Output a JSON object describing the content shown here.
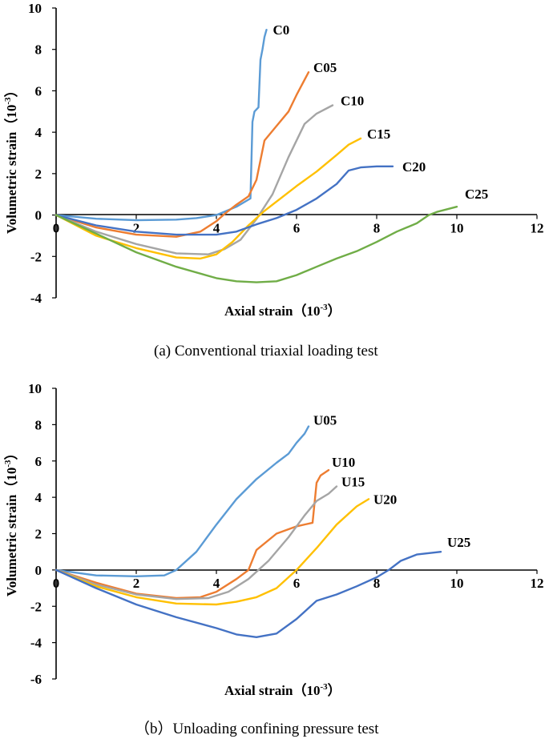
{
  "chart_data": [
    {
      "type": "line",
      "caption": "(a)  Conventional triaxial loading test",
      "xlabel": "Axial strain（10",
      "xlabel_sup": "-3",
      "xlabel_end": "）",
      "ylabel": "Volumetric strain（10",
      "ylabel_sup": "-3",
      "ylabel_end": "）",
      "xlim": [
        0,
        12
      ],
      "ylim": [
        -4,
        10
      ],
      "xticks": [
        "0",
        "2",
        "4",
        "6",
        "8",
        "10",
        "12"
      ],
      "yticks": [
        "-4",
        "-2",
        "0",
        "2",
        "4",
        "6",
        "8",
        "10"
      ],
      "series": [
        {
          "name": "C0",
          "color": "#5B9BD5",
          "x": [
            0,
            1,
            2,
            3,
            3.5,
            4,
            4.5,
            4.85,
            4.9,
            4.95,
            5.05,
            5.1,
            5.15,
            5.2,
            5.25
          ],
          "y": [
            0,
            -0.18,
            -0.25,
            -0.22,
            -0.15,
            0,
            0.4,
            0.8,
            4.5,
            5.0,
            5.2,
            7.5,
            8.0,
            8.6,
            8.95
          ]
        },
        {
          "name": "C05",
          "color": "#ED7D31",
          "x": [
            0,
            1,
            2,
            3,
            3.6,
            4,
            4.2,
            4.5,
            4.8,
            5.0,
            5.2,
            5.5,
            5.8,
            6.0,
            6.3
          ],
          "y": [
            0,
            -0.6,
            -0.95,
            -1.05,
            -0.8,
            -0.3,
            0.05,
            0.5,
            0.9,
            1.7,
            3.6,
            4.3,
            5.0,
            5.8,
            6.9
          ]
        },
        {
          "name": "C10",
          "color": "#A5A5A5",
          "x": [
            0,
            1,
            2,
            3,
            3.8,
            4.2,
            4.6,
            5.0,
            5.4,
            5.8,
            6.2,
            6.5,
            6.9
          ],
          "y": [
            0,
            -0.8,
            -1.4,
            -1.85,
            -1.9,
            -1.65,
            -1.2,
            -0.2,
            1.0,
            2.8,
            4.4,
            4.9,
            5.3
          ]
        },
        {
          "name": "C15",
          "color": "#FFC000",
          "x": [
            0,
            1,
            2,
            3,
            3.6,
            4.0,
            4.4,
            4.8,
            5.2,
            5.6,
            6.0,
            6.5,
            7.0,
            7.3,
            7.6
          ],
          "y": [
            0,
            -1.0,
            -1.6,
            -2.05,
            -2.1,
            -1.9,
            -1.3,
            -0.5,
            0.2,
            0.8,
            1.4,
            2.1,
            2.9,
            3.4,
            3.7
          ]
        },
        {
          "name": "C20",
          "color": "#4472C4",
          "x": [
            0,
            1,
            2,
            3,
            4,
            4.5,
            5.0,
            5.5,
            6.0,
            6.5,
            7.0,
            7.3,
            7.6,
            8.0,
            8.4
          ],
          "y": [
            0,
            -0.5,
            -0.8,
            -0.95,
            -0.95,
            -0.8,
            -0.45,
            -0.15,
            0.25,
            0.8,
            1.5,
            2.15,
            2.3,
            2.35,
            2.35
          ]
        },
        {
          "name": "C25",
          "color": "#70AD47",
          "x": [
            0,
            1,
            2,
            3,
            4,
            4.5,
            5.0,
            5.5,
            6.0,
            6.5,
            7.0,
            7.5,
            8.0,
            8.5,
            9.0,
            9.3,
            9.5,
            10.0
          ],
          "y": [
            0,
            -0.9,
            -1.8,
            -2.5,
            -3.05,
            -3.2,
            -3.25,
            -3.2,
            -2.9,
            -2.5,
            -2.1,
            -1.75,
            -1.3,
            -0.8,
            -0.4,
            0.0,
            0.15,
            0.4
          ]
        }
      ]
    },
    {
      "type": "line",
      "caption": "（b）Unloading confining pressure test",
      "xlabel": "Axial strain（10",
      "xlabel_sup": "-3",
      "xlabel_end": "）",
      "ylabel": "Volumetric strain（10",
      "ylabel_sup": "-3",
      "ylabel_end": "）",
      "xlim": [
        0,
        12
      ],
      "ylim": [
        -6,
        10
      ],
      "xticks": [
        "0",
        "2",
        "4",
        "6",
        "8",
        "10",
        "12"
      ],
      "yticks": [
        "-6",
        "-4",
        "-2",
        "0",
        "2",
        "4",
        "6",
        "8",
        "10"
      ],
      "series": [
        {
          "name": "U05",
          "color": "#5B9BD5",
          "x": [
            0,
            1,
            2,
            2.7,
            3.0,
            3.5,
            4.0,
            4.5,
            5.0,
            5.5,
            5.8,
            6.0,
            6.2,
            6.3
          ],
          "y": [
            0,
            -0.3,
            -0.35,
            -0.3,
            0.0,
            1.0,
            2.5,
            3.9,
            5.0,
            5.9,
            6.4,
            7.0,
            7.5,
            7.9
          ]
        },
        {
          "name": "U10",
          "color": "#ED7D31",
          "x": [
            0,
            1,
            2,
            3,
            3.6,
            4.0,
            4.5,
            4.8,
            5.0,
            5.5,
            6.0,
            6.4,
            6.5,
            6.6,
            6.8
          ],
          "y": [
            0,
            -0.7,
            -1.3,
            -1.55,
            -1.5,
            -1.2,
            -0.5,
            0.0,
            1.1,
            2.0,
            2.4,
            2.6,
            4.8,
            5.2,
            5.5
          ]
        },
        {
          "name": "U15",
          "color": "#A5A5A5",
          "x": [
            0,
            1,
            2,
            3,
            3.8,
            4.3,
            4.8,
            5.3,
            5.8,
            6.2,
            6.5,
            6.8,
            7.0
          ],
          "y": [
            0,
            -0.8,
            -1.35,
            -1.6,
            -1.55,
            -1.2,
            -0.5,
            0.5,
            1.8,
            3.0,
            3.8,
            4.2,
            4.6
          ]
        },
        {
          "name": "U20",
          "color": "#FFC000",
          "x": [
            0,
            1,
            2,
            3,
            4,
            4.5,
            5.0,
            5.5,
            6.0,
            6.5,
            7.0,
            7.5,
            7.8
          ],
          "y": [
            0,
            -0.9,
            -1.5,
            -1.85,
            -1.9,
            -1.75,
            -1.5,
            -1.0,
            0.0,
            1.2,
            2.5,
            3.5,
            3.9
          ]
        },
        {
          "name": "U25",
          "color": "#4472C4",
          "x": [
            0,
            1,
            2,
            3,
            4,
            4.5,
            5.0,
            5.5,
            6.0,
            6.5,
            7.0,
            7.5,
            8.0,
            8.3,
            8.6,
            9.0,
            9.6
          ],
          "y": [
            0,
            -1.0,
            -1.9,
            -2.6,
            -3.2,
            -3.55,
            -3.7,
            -3.5,
            -2.7,
            -1.7,
            -1.35,
            -0.9,
            -0.4,
            0.0,
            0.5,
            0.85,
            1.0
          ]
        }
      ]
    }
  ]
}
